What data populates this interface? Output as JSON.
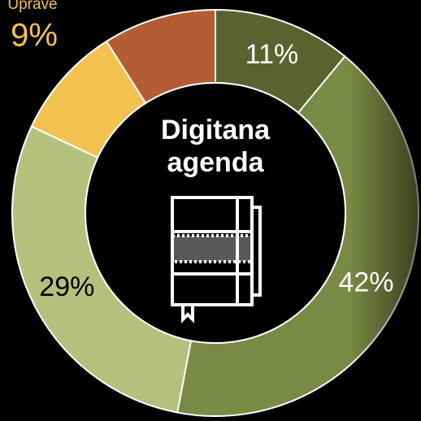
{
  "chart_data": {
    "type": "donut",
    "title": "Digitana agenda",
    "categories": [
      null,
      null,
      null,
      "Uprave",
      null
    ],
    "values": [
      11,
      42,
      29,
      9,
      9
    ],
    "value_labels": [
      "11%",
      "42%",
      "29%",
      "9%",
      null
    ],
    "colors": [
      "#58632f",
      "#7a8944",
      "#b4c17d",
      "#f2c14f",
      "#b65c34"
    ],
    "label_colors": [
      "#ffffff",
      "#ffffff",
      "#000000",
      "#f2c14f",
      null
    ]
  }
}
